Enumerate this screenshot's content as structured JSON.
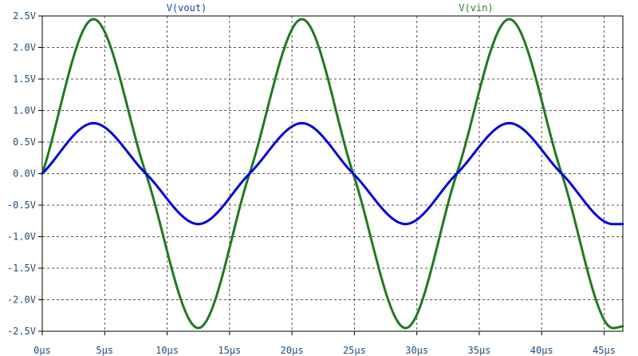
{
  "chart_data": {
    "type": "line",
    "title": "",
    "xlabel": "",
    "ylabel": "",
    "xlim": [
      0,
      46.5
    ],
    "ylim": [
      -2.5,
      2.5
    ],
    "grid": true,
    "legend_position": "top",
    "x_ticks": [
      "0µs",
      "5µs",
      "10µs",
      "15µs",
      "20µs",
      "25µs",
      "30µs",
      "35µs",
      "40µs",
      "45µs"
    ],
    "y_ticks": [
      "2.5V",
      "2.0V",
      "1.5V",
      "1.0V",
      "0.5V",
      "0.0V",
      "-0.5V",
      "-1.0V",
      "-1.5V",
      "-2.0V",
      "-2.5V"
    ],
    "series": [
      {
        "name": "V(vout)",
        "color": "#0000e0",
        "x": [
          0,
          4.1,
          8.3,
          12.5,
          16.6,
          20.8,
          24.9,
          29.1,
          33.2,
          37.4,
          41.6,
          45.7,
          46.5
        ],
        "values": [
          0.0,
          0.8,
          0.0,
          -0.8,
          0.0,
          0.8,
          0.0,
          -0.8,
          0.0,
          0.8,
          0.0,
          -0.8,
          -0.8
        ]
      },
      {
        "name": "V(vin)",
        "color": "#1f7a1f",
        "x": [
          0,
          4.1,
          8.3,
          12.5,
          16.6,
          20.8,
          24.9,
          29.1,
          33.2,
          37.4,
          41.6,
          45.7,
          46.5
        ],
        "values": [
          0.0,
          2.45,
          0.0,
          -2.45,
          0.0,
          2.45,
          0.0,
          -2.45,
          0.0,
          2.45,
          0.0,
          -2.45,
          -2.42
        ]
      }
    ]
  }
}
